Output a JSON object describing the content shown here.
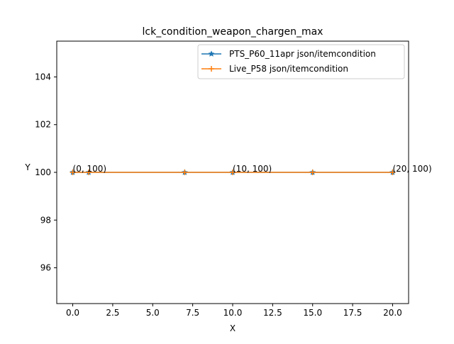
{
  "chart_data": {
    "type": "line",
    "title": "lck_condition_weapon_chargen_max",
    "xlabel": "X",
    "ylabel": "Y",
    "xlim": [
      -1,
      21
    ],
    "ylim": [
      94.5,
      105.5
    ],
    "xticks": [
      0,
      2.5,
      5,
      7.5,
      10,
      12.5,
      15,
      17.5,
      20
    ],
    "xtick_labels": [
      "0.0",
      "2.5",
      "5.0",
      "7.5",
      "10.0",
      "12.5",
      "15.0",
      "17.5",
      "20.0"
    ],
    "yticks": [
      96,
      98,
      100,
      102,
      104
    ],
    "ytick_labels": [
      "96",
      "98",
      "100",
      "102",
      "104"
    ],
    "grid": false,
    "legend_position": "top-right",
    "series": [
      {
        "name": "PTS_P60_11apr json/itemcondition",
        "color": "#1f77b4",
        "marker": "star",
        "x": [
          0,
          1,
          7,
          10,
          15,
          20
        ],
        "y": [
          100,
          100,
          100,
          100,
          100,
          100
        ]
      },
      {
        "name": "Live_P58 json/itemcondition",
        "color": "#ff7f0e",
        "marker": "plus",
        "x": [
          0,
          1,
          7,
          10,
          15,
          20
        ],
        "y": [
          100,
          100,
          100,
          100,
          100,
          100
        ]
      }
    ],
    "annotations": [
      {
        "x": 0,
        "y": 100,
        "text": "(0, 100)"
      },
      {
        "x": 10,
        "y": 100,
        "text": "(10, 100)"
      },
      {
        "x": 20,
        "y": 100,
        "text": "(20, 100)"
      }
    ]
  }
}
